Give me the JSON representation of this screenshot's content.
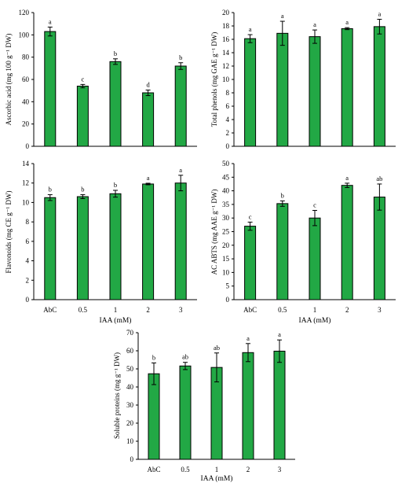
{
  "chart_data": [
    {
      "type": "bar",
      "categories": [
        "AbC",
        "0.5",
        "1",
        "2",
        "3"
      ],
      "values": [
        103,
        54,
        76,
        48,
        72
      ],
      "errors": [
        4,
        1.5,
        2.5,
        2.5,
        3
      ],
      "letters": [
        "a",
        "c",
        "b",
        "d",
        "b"
      ],
      "ylabel": "Ascorbic acid (mg 100 g⁻¹ DW)",
      "xlabel": "",
      "ylim": [
        0,
        120
      ],
      "yticks": [
        "0",
        "20",
        "40",
        "60",
        "80",
        "100",
        "120"
      ],
      "show_category_labels": false,
      "color": "#22a845"
    },
    {
      "type": "bar",
      "categories": [
        "AbC",
        "0.5",
        "1",
        "2",
        "3"
      ],
      "values": [
        16.1,
        16.9,
        16.4,
        17.6,
        17.9
      ],
      "errors": [
        0.6,
        1.8,
        1.0,
        0.15,
        1.1
      ],
      "letters": [
        "a",
        "a",
        "a",
        "a",
        "a"
      ],
      "ylabel": "Total phenols (mg GAE g⁻¹ DW)",
      "xlabel": "",
      "ylim": [
        0,
        20
      ],
      "yticks": [
        "0",
        "2",
        "4",
        "6",
        "8",
        "10",
        "12",
        "14",
        "16",
        "18",
        "20"
      ],
      "show_category_labels": false,
      "color": "#22a845"
    },
    {
      "type": "bar",
      "categories": [
        "AbC",
        "0.5",
        "1",
        "2",
        "3"
      ],
      "values": [
        10.5,
        10.6,
        10.9,
        11.9,
        12.0
      ],
      "errors": [
        0.3,
        0.2,
        0.35,
        0.08,
        0.8
      ],
      "letters": [
        "b",
        "b",
        "b",
        "a",
        "a"
      ],
      "ylabel": "Flavonoids (mg CE g⁻¹ DW)",
      "xlabel": "IAA (mM)",
      "ylim": [
        0,
        14
      ],
      "yticks": [
        "0",
        "2",
        "4",
        "6",
        "8",
        "10",
        "12",
        "14"
      ],
      "show_category_labels": true,
      "color": "#22a845"
    },
    {
      "type": "bar",
      "categories": [
        "AbC",
        "0.5",
        "1",
        "2",
        "3"
      ],
      "values": [
        27,
        35.3,
        30,
        42,
        37.7
      ],
      "errors": [
        1.5,
        1.0,
        2.8,
        0.8,
        4.8
      ],
      "letters": [
        "c",
        "b",
        "c",
        "a",
        "ab"
      ],
      "ylabel": "AC ABTS (mg AAE g⁻¹ DW)",
      "xlabel": "IAA (mM)",
      "ylim": [
        0,
        50
      ],
      "yticks": [
        "0",
        "5",
        "10",
        "15",
        "20",
        "25",
        "30",
        "35",
        "40",
        "45",
        "50"
      ],
      "show_category_labels": true,
      "color": "#22a845"
    },
    {
      "type": "bar",
      "categories": [
        "AbC",
        "0.5",
        "1",
        "2",
        "3"
      ],
      "values": [
        47.3,
        51.6,
        50.8,
        59,
        59.8
      ],
      "errors": [
        6,
        2,
        8,
        5,
        6.2
      ],
      "letters": [
        "b",
        "ab",
        "ab",
        "a",
        "a"
      ],
      "ylabel": "Soluble proteins (mg g⁻¹ DW)",
      "xlabel": "IAA (mM)",
      "ylim": [
        0,
        70
      ],
      "yticks": [
        "0",
        "10",
        "20",
        "30",
        "40",
        "50",
        "60",
        "70"
      ],
      "show_category_labels": true,
      "color": "#22a845"
    }
  ]
}
